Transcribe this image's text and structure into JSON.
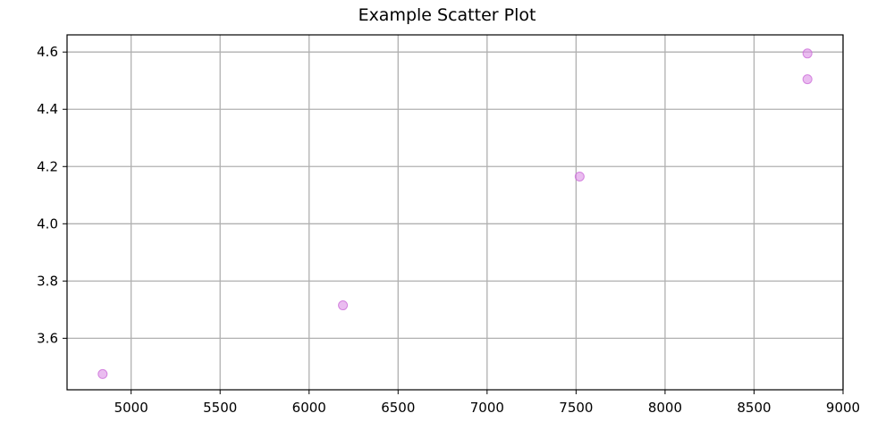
{
  "chart_data": {
    "type": "scatter",
    "title": "Example Scatter Plot",
    "xlabel": "",
    "ylabel": "",
    "xlim": [
      4640,
      9000
    ],
    "ylim": [
      3.42,
      4.66
    ],
    "grid": true,
    "x_ticks": [
      "5000",
      "5500",
      "6000",
      "6500",
      "7000",
      "7500",
      "8000",
      "8500",
      "9000"
    ],
    "y_ticks": [
      "3.6",
      "3.8",
      "4.0",
      "4.2",
      "4.4",
      "4.6"
    ],
    "series": [
      {
        "points": [
          {
            "x": 4840,
            "y": 3.475
          },
          {
            "x": 6190,
            "y": 3.715
          },
          {
            "x": 7520,
            "y": 4.165
          },
          {
            "x": 8800,
            "y": 4.505
          },
          {
            "x": 8800,
            "y": 4.595
          }
        ],
        "color": "#dc8fe6"
      }
    ],
    "colors": {
      "grid": "#b0b0b0",
      "axis": "#000000",
      "marker_fill": "#dc8fe6",
      "marker_stroke": "#cc6bd8"
    }
  }
}
